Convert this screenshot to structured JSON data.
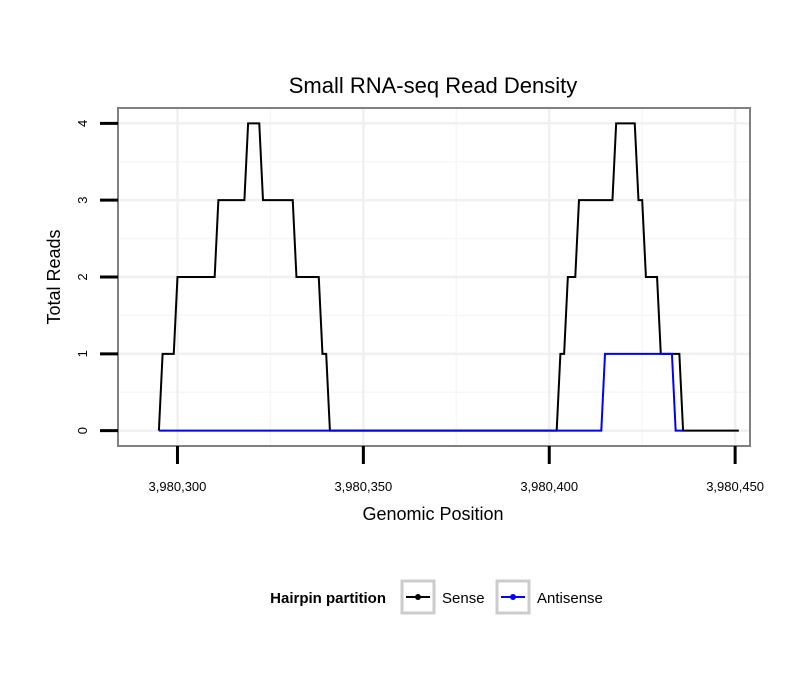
{
  "chart_data": {
    "type": "line",
    "title": "Small RNA-seq Read Density",
    "xlabel": "Genomic Position",
    "ylabel": "Total Reads",
    "xlim": [
      3980284,
      3980454
    ],
    "ylim": [
      -0.2,
      4.2
    ],
    "x_ticks": [
      3980300,
      3980350,
      3980400,
      3980450
    ],
    "x_tick_labels": [
      "3,980,300",
      "3,980,350",
      "3,980,400",
      "3,980,450"
    ],
    "y_ticks": [
      0,
      1,
      2,
      3,
      4
    ],
    "y_tick_labels": [
      "0",
      "1",
      "2",
      "3",
      "4"
    ],
    "grid": true,
    "legend": {
      "title": "Hairpin partition",
      "position": "bottom",
      "entries": [
        {
          "label": "Sense",
          "color": "#000000"
        },
        {
          "label": "Antisense",
          "color": "#0000ff"
        }
      ]
    },
    "series": [
      {
        "name": "Sense",
        "color": "#000000",
        "points": [
          [
            3980295,
            0
          ],
          [
            3980296,
            1
          ],
          [
            3980299,
            1
          ],
          [
            3980300,
            2
          ],
          [
            3980310,
            2
          ],
          [
            3980311,
            3
          ],
          [
            3980318,
            3
          ],
          [
            3980319,
            4
          ],
          [
            3980322,
            4
          ],
          [
            3980323,
            3
          ],
          [
            3980331,
            3
          ],
          [
            3980332,
            2
          ],
          [
            3980338,
            2
          ],
          [
            3980339,
            1
          ],
          [
            3980340,
            1
          ],
          [
            3980341,
            0
          ],
          [
            3980402,
            0
          ],
          [
            3980403,
            1
          ],
          [
            3980404,
            1
          ],
          [
            3980405,
            2
          ],
          [
            3980407,
            2
          ],
          [
            3980408,
            3
          ],
          [
            3980417,
            3
          ],
          [
            3980418,
            4
          ],
          [
            3980423,
            4
          ],
          [
            3980424,
            3
          ],
          [
            3980425,
            3
          ],
          [
            3980426,
            2
          ],
          [
            3980429,
            2
          ],
          [
            3980430,
            1
          ],
          [
            3980435,
            1
          ],
          [
            3980436,
            0
          ],
          [
            3980451,
            0
          ]
        ]
      },
      {
        "name": "Antisense",
        "color": "#0000ff",
        "points": [
          [
            3980295,
            0
          ],
          [
            3980414,
            0
          ],
          [
            3980415,
            1
          ],
          [
            3980433,
            1
          ],
          [
            3980434,
            0
          ],
          [
            3980436,
            0
          ]
        ]
      }
    ]
  }
}
